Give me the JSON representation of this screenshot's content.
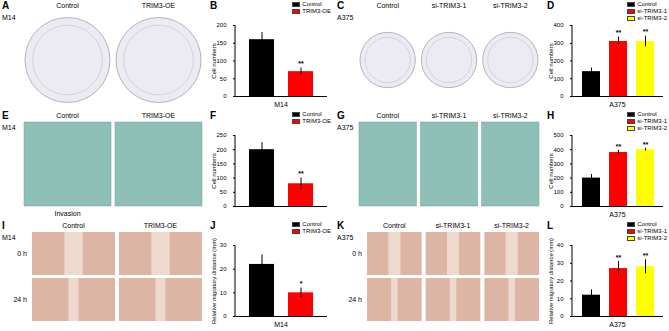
{
  "panels": [
    {
      "panel": "A",
      "type": "colony_image",
      "title": "M14",
      "captions": [
        "Control",
        "TRIM3-OE"
      ]
    },
    {
      "panel": "C",
      "type": "colony_image",
      "title": "A375",
      "captions": [
        "Control",
        "si-TRIM3-1",
        "si-TRIM3-2"
      ]
    },
    {
      "panel": "E",
      "type": "transwell_image",
      "captions": [
        "Control",
        "TRIM3-OE"
      ],
      "title": "M14",
      "footer": "Invasion"
    },
    {
      "panel": "G",
      "type": "transwell_image",
      "title": "A375",
      "captions": [
        "Control",
        "si-TRIM3-1",
        "si-TRIM3-2"
      ]
    },
    {
      "panel": "I",
      "type": "wound_image",
      "title": "M14",
      "captions": [
        "Control",
        "TRIM3-OE"
      ],
      "rows": [
        "0 h",
        "24 h"
      ]
    },
    {
      "panel": "K",
      "type": "wound_image",
      "title": "A375",
      "captions": [
        "Control",
        "si-TRIM3-1",
        "si-TRIM3-2"
      ],
      "rows": [
        "0 h",
        "24 h"
      ]
    }
  ],
  "chart_data": [
    {
      "panel": "B",
      "type": "bar",
      "categories": [
        "Control",
        "TRIM3-OE"
      ],
      "values": [
        160,
        70
      ],
      "errors": [
        20,
        10
      ],
      "colors": [
        "#000000",
        "#ff0000"
      ],
      "ylabel": "Cell numbers",
      "xlabel": "M14",
      "ylim": [
        0,
        200
      ],
      "yticks": [
        0,
        50,
        100,
        150,
        200
      ],
      "annotations": [
        {
          "category": "TRIM3-OE",
          "text": "**"
        }
      ],
      "legend": "top-right",
      "tick_labels": "y"
    },
    {
      "panel": "D",
      "type": "bar",
      "categories": [
        "Control",
        "si-TRIM3-1",
        "si-TRIM3-2"
      ],
      "values": [
        140,
        310,
        310
      ],
      "errors": [
        20,
        25,
        30
      ],
      "colors": [
        "#000000",
        "#ff0000",
        "#ffff00"
      ],
      "ylabel": "Cell numbers",
      "xlabel": "A375",
      "ylim": [
        0,
        400
      ],
      "yticks": [
        0,
        100,
        200,
        300,
        400
      ],
      "annotations": [
        {
          "category": "si-TRIM3-1",
          "text": "**"
        },
        {
          "category": "si-TRIM3-2",
          "text": "**"
        }
      ],
      "legend": "top-right",
      "tick_labels": "y"
    },
    {
      "panel": "F",
      "type": "bar",
      "categories": [
        "Control",
        "TRIM3-OE"
      ],
      "values": [
        200,
        80
      ],
      "errors": [
        25,
        20
      ],
      "colors": [
        "#000000",
        "#ff0000"
      ],
      "ylabel": "Cell numbers",
      "ylim": [
        0,
        250
      ],
      "yticks": [
        0,
        50,
        100,
        150,
        200,
        250
      ],
      "annotations": [
        {
          "category": "TRIM3-OE",
          "text": "**"
        }
      ],
      "legend": "top-right",
      "tick_labels": "y"
    },
    {
      "panel": "H",
      "type": "bar",
      "categories": [
        "Control",
        "si-TRIM3-1",
        "si-TRIM3-2"
      ],
      "values": [
        200,
        380,
        400
      ],
      "errors": [
        25,
        15,
        10
      ],
      "colors": [
        "#000000",
        "#ff0000",
        "#ffff00"
      ],
      "ylabel": "Cell numbers",
      "xlabel": "A375",
      "ylim": [
        0,
        500
      ],
      "yticks": [
        0,
        100,
        200,
        300,
        400,
        500
      ],
      "annotations": [
        {
          "category": "si-TRIM3-1",
          "text": "**"
        },
        {
          "category": "si-TRIM3-2",
          "text": "**"
        }
      ],
      "legend": "top-right",
      "tick_labels": "y"
    },
    {
      "panel": "J",
      "type": "bar",
      "categories": [
        "Control",
        "TRIM3-OE"
      ],
      "values": [
        22,
        10
      ],
      "errors": [
        4,
        2
      ],
      "colors": [
        "#000000",
        "#ff0000"
      ],
      "ylabel": "Relative migratory distance (mm)",
      "xlabel": "M14",
      "ylim": [
        0,
        30
      ],
      "yticks": [
        0,
        10,
        20,
        30
      ],
      "annotations": [
        {
          "category": "TRIM3-OE",
          "text": "*"
        }
      ],
      "legend": "top-right",
      "tick_labels": "y"
    },
    {
      "panel": "L",
      "type": "bar",
      "categories": [
        "Control",
        "si-TRIM3-1",
        "si-TRIM3-2"
      ],
      "values": [
        12,
        27,
        28
      ],
      "errors": [
        3,
        4,
        4
      ],
      "colors": [
        "#000000",
        "#ff0000",
        "#ffff00"
      ],
      "ylabel": "Relative migratory distance (mm)",
      "xlabel": "A375",
      "ylim": [
        0,
        40
      ],
      "yticks": [
        0,
        10,
        20,
        30,
        40
      ],
      "annotations": [
        {
          "category": "si-TRIM3-1",
          "text": "**"
        },
        {
          "category": "si-TRIM3-2",
          "text": "**"
        }
      ],
      "legend": "top-right",
      "tick_labels": "y"
    }
  ]
}
